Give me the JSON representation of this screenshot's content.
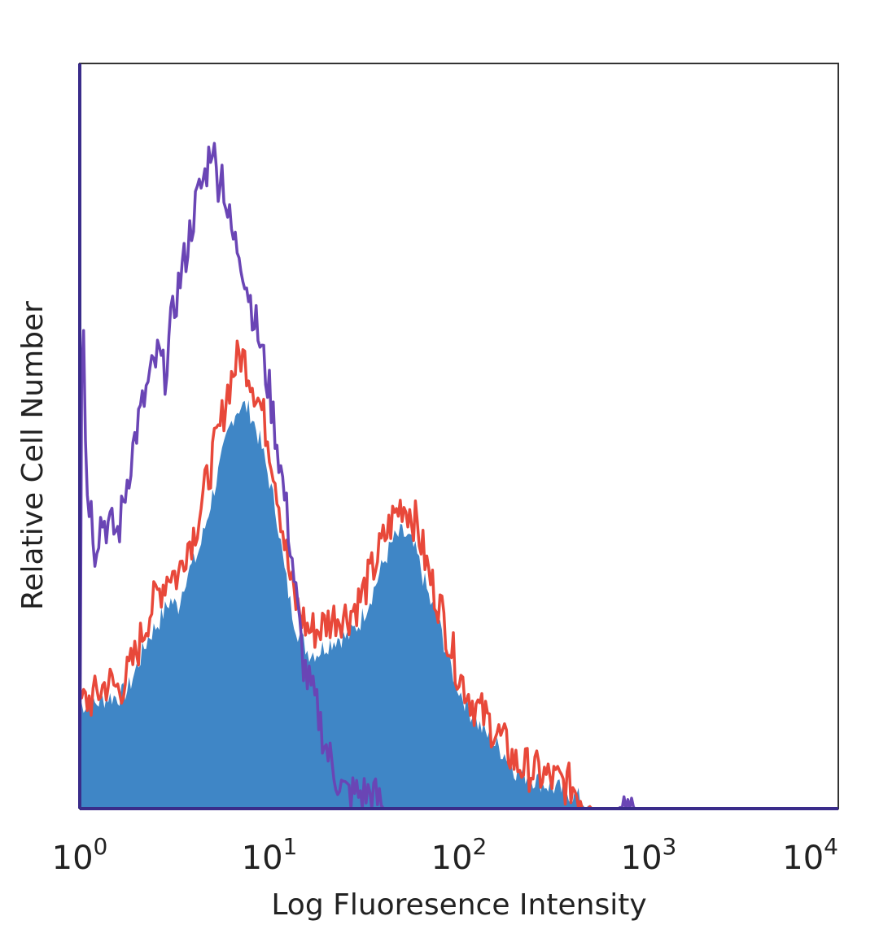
{
  "chart_data": {
    "type": "histogram",
    "title": "",
    "xlabel": "Log Fluoresence Intensity",
    "ylabel": "Relative Cell Number",
    "x_scale": "log",
    "xlim": [
      1,
      10000
    ],
    "ylim": [
      0,
      100
    ],
    "grid": false,
    "legend": "none",
    "x_ticks": [
      {
        "base": "10",
        "exp": "0",
        "value": 1
      },
      {
        "base": "10",
        "exp": "1",
        "value": 10
      },
      {
        "base": "10",
        "exp": "2",
        "value": 100
      },
      {
        "base": "10",
        "exp": "3",
        "value": 1000
      },
      {
        "base": "10",
        "exp": "4",
        "value": 10000
      }
    ],
    "series": [
      {
        "style": "filled",
        "color": "#3f86c6",
        "points": [
          [
            1,
            14
          ],
          [
            1.2,
            14
          ],
          [
            1.4,
            15
          ],
          [
            1.6,
            15
          ],
          [
            1.8,
            16
          ],
          [
            2,
            19
          ],
          [
            2.3,
            23
          ],
          [
            2.6,
            25
          ],
          [
            3,
            28
          ],
          [
            3.3,
            27
          ],
          [
            3.6,
            31
          ],
          [
            4,
            33
          ],
          [
            4.3,
            35
          ],
          [
            4.6,
            38
          ],
          [
            5,
            42
          ],
          [
            5.5,
            46
          ],
          [
            6,
            50
          ],
          [
            6.5,
            53
          ],
          [
            7,
            54
          ],
          [
            7.5,
            54
          ],
          [
            8,
            53
          ],
          [
            9,
            49
          ],
          [
            10,
            44
          ],
          [
            11,
            39
          ],
          [
            12,
            32
          ],
          [
            13,
            27
          ],
          [
            14,
            24
          ],
          [
            16,
            21
          ],
          [
            18,
            21
          ],
          [
            20,
            22
          ],
          [
            23,
            23
          ],
          [
            26,
            23
          ],
          [
            30,
            25
          ],
          [
            35,
            29
          ],
          [
            40,
            33
          ],
          [
            45,
            36
          ],
          [
            50,
            37
          ],
          [
            55,
            36
          ],
          [
            60,
            34
          ],
          [
            70,
            28
          ],
          [
            80,
            24
          ],
          [
            90,
            19
          ],
          [
            100,
            16
          ],
          [
            120,
            12
          ],
          [
            150,
            9
          ],
          [
            180,
            7
          ],
          [
            200,
            5
          ],
          [
            250,
            4
          ],
          [
            300,
            3
          ],
          [
            400,
            2
          ],
          [
            500,
            0
          ],
          [
            800,
            0
          ],
          [
            1000,
            0
          ],
          [
            10000,
            0
          ]
        ]
      },
      {
        "style": "line",
        "color": "#e8483a",
        "points": [
          [
            1,
            14
          ],
          [
            1.2,
            15
          ],
          [
            1.4,
            17
          ],
          [
            1.6,
            16
          ],
          [
            1.8,
            18
          ],
          [
            2,
            21
          ],
          [
            2.3,
            26
          ],
          [
            2.6,
            29
          ],
          [
            3,
            32
          ],
          [
            3.3,
            31
          ],
          [
            3.6,
            35
          ],
          [
            4,
            37
          ],
          [
            4.3,
            40
          ],
          [
            4.6,
            43
          ],
          [
            5,
            47
          ],
          [
            5.5,
            51
          ],
          [
            6,
            56
          ],
          [
            6.5,
            59
          ],
          [
            7,
            61
          ],
          [
            7.5,
            60
          ],
          [
            8,
            58
          ],
          [
            9,
            54
          ],
          [
            10,
            49
          ],
          [
            11,
            43
          ],
          [
            12,
            36
          ],
          [
            13,
            30
          ],
          [
            14,
            27
          ],
          [
            16,
            24
          ],
          [
            18,
            24
          ],
          [
            20,
            25
          ],
          [
            23,
            26
          ],
          [
            26,
            26
          ],
          [
            30,
            28
          ],
          [
            35,
            32
          ],
          [
            40,
            36
          ],
          [
            45,
            39
          ],
          [
            50,
            41
          ],
          [
            55,
            40
          ],
          [
            60,
            38
          ],
          [
            70,
            31
          ],
          [
            80,
            27
          ],
          [
            90,
            22
          ],
          [
            100,
            18
          ],
          [
            120,
            14
          ],
          [
            150,
            11
          ],
          [
            180,
            8
          ],
          [
            200,
            6
          ],
          [
            250,
            5
          ],
          [
            300,
            4
          ],
          [
            400,
            3
          ],
          [
            500,
            0
          ],
          [
            800,
            0
          ],
          [
            1000,
            0
          ],
          [
            10000,
            0
          ]
        ]
      },
      {
        "style": "line",
        "color": "#6a45b5",
        "points": [
          [
            1,
            0
          ],
          [
            1.03,
            77
          ],
          [
            1.08,
            44
          ],
          [
            1.15,
            40
          ],
          [
            1.2,
            35
          ],
          [
            1.3,
            39
          ],
          [
            1.4,
            38
          ],
          [
            1.6,
            37
          ],
          [
            1.8,
            45
          ],
          [
            2,
            51
          ],
          [
            2.3,
            57
          ],
          [
            2.6,
            61
          ],
          [
            2.8,
            58
          ],
          [
            3,
            64
          ],
          [
            3.3,
            70
          ],
          [
            3.6,
            74
          ],
          [
            4,
            80
          ],
          [
            4.3,
            83
          ],
          [
            4.6,
            85
          ],
          [
            5,
            90
          ],
          [
            5.3,
            84
          ],
          [
            5.6,
            86
          ],
          [
            6,
            80
          ],
          [
            6.5,
            76
          ],
          [
            7,
            75
          ],
          [
            7.5,
            71
          ],
          [
            8,
            68
          ],
          [
            9,
            62
          ],
          [
            10,
            56
          ],
          [
            11,
            49
          ],
          [
            12,
            42
          ],
          [
            13,
            35
          ],
          [
            14,
            27
          ],
          [
            15,
            20
          ],
          [
            16,
            17
          ],
          [
            18,
            13
          ],
          [
            20,
            8
          ],
          [
            22,
            5
          ],
          [
            25,
            2
          ],
          [
            30,
            2
          ],
          [
            35,
            2
          ],
          [
            40,
            0
          ],
          [
            700,
            0
          ],
          [
            800,
            2
          ],
          [
            850,
            0
          ],
          [
            10000,
            0
          ]
        ]
      }
    ]
  }
}
